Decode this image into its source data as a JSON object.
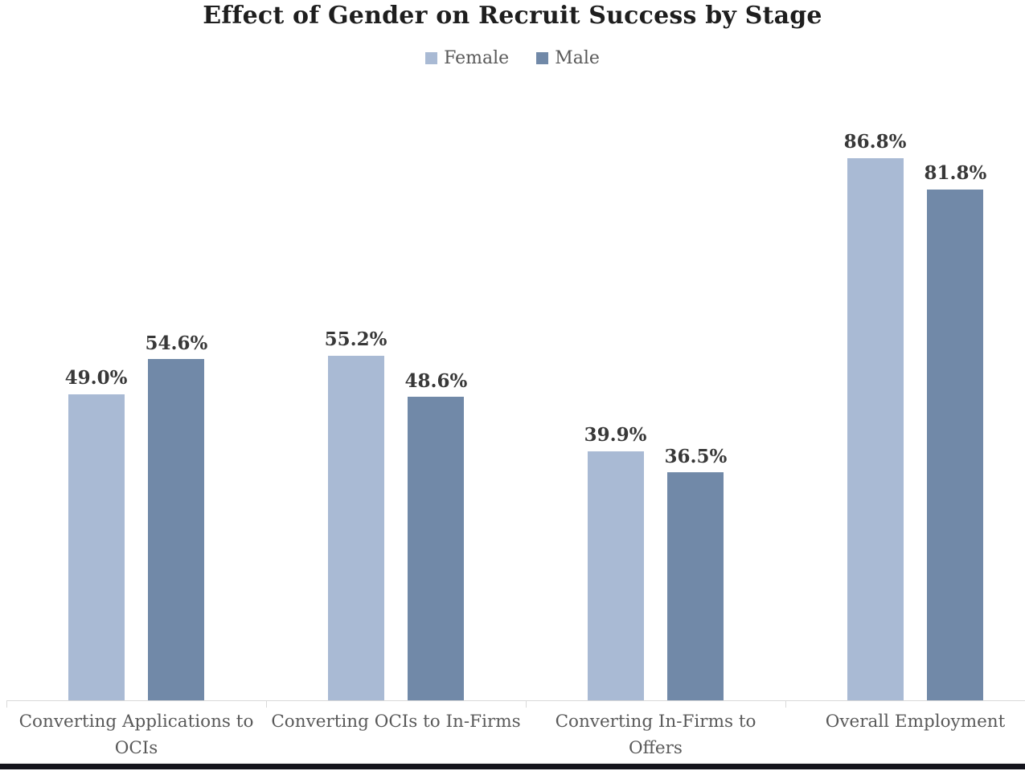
{
  "chart_data": {
    "type": "bar",
    "title": "Effect of Gender on Recruit Success by Stage",
    "categories": [
      "Converting Applications to\nOCIs",
      "Converting OCIs to In-Firms",
      "Converting In-Firms to\nOffers",
      "Overall Employment"
    ],
    "series": [
      {
        "name": "Female",
        "color": "#a9bad4",
        "values": [
          49.0,
          55.2,
          39.9,
          86.8
        ],
        "labels": [
          "49.0%",
          "55.2%",
          "39.9%",
          "86.8%"
        ]
      },
      {
        "name": "Male",
        "color": "#7189a8",
        "values": [
          54.6,
          48.6,
          36.5,
          81.8
        ],
        "labels": [
          "54.6%",
          "48.6%",
          "36.5%",
          "81.8%"
        ]
      }
    ],
    "ylim": [
      0,
      100
    ],
    "y_axis_visible": false,
    "gridlines": false,
    "data_labels": true,
    "legend_position": "top",
    "xlabel": "",
    "ylabel": "",
    "colors": {
      "title": "#1e1e1e",
      "value_label": "#383838",
      "axis_text": "#595959",
      "axis_line": "#d9d9d9",
      "bottom_bar": "#14141c"
    }
  }
}
